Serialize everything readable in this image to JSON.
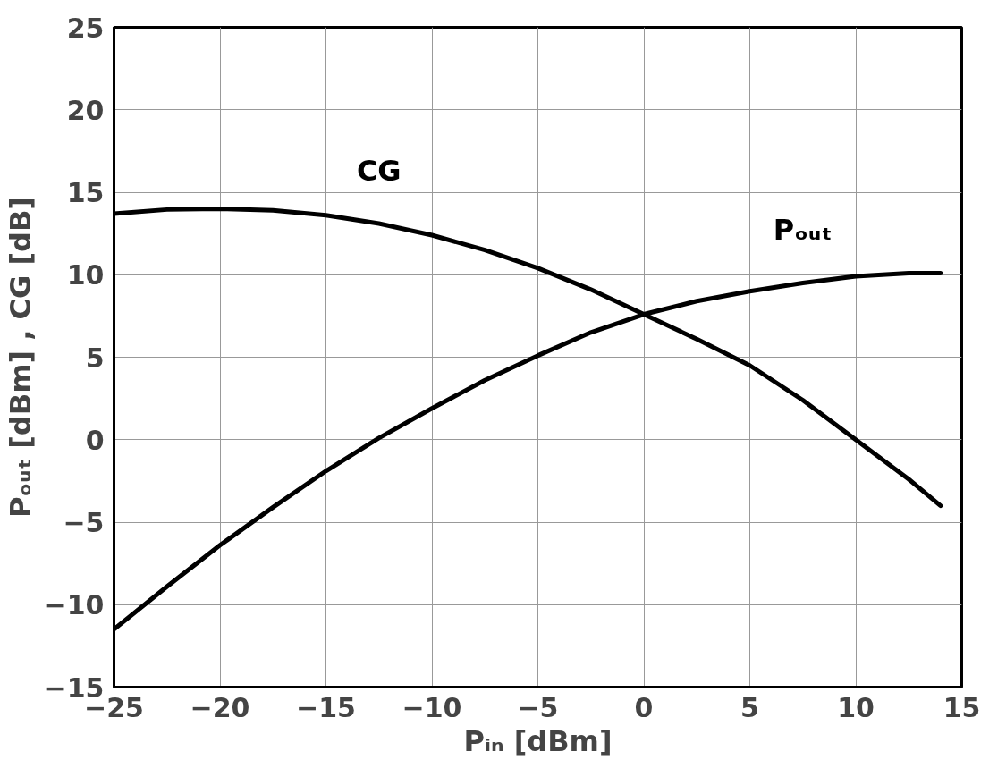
{
  "chart_data": {
    "type": "line",
    "xlabel": "Pᵢₙ [dBm]",
    "ylabel": "Pₒᵤₜ [dBm] , CG [dB]",
    "x": [
      -25,
      -22.5,
      -20,
      -17.5,
      -15,
      -12.5,
      -10,
      -7.5,
      -5,
      -2.5,
      0,
      2.5,
      5,
      7.5,
      10,
      12.5,
      14
    ],
    "series": [
      {
        "name": "CG",
        "color": "#000000",
        "values": [
          13.7,
          13.95,
          14.0,
          13.9,
          13.6,
          13.1,
          12.4,
          11.5,
          10.4,
          9.1,
          7.6,
          6.1,
          4.5,
          2.4,
          0.0,
          -2.4,
          -4.0
        ]
      },
      {
        "name": "Pₒᵤₜ",
        "color": "#000000",
        "values": [
          -11.5,
          -8.9,
          -6.4,
          -4.1,
          -1.9,
          0.1,
          1.9,
          3.6,
          5.1,
          6.5,
          7.6,
          8.4,
          9.0,
          9.5,
          9.9,
          10.1,
          10.1
        ]
      }
    ],
    "xlim": [
      -25,
      15
    ],
    "ylim": [
      -15,
      25
    ],
    "xticks": [
      -25,
      -20,
      -15,
      -10,
      -5,
      0,
      5,
      10,
      15
    ],
    "yticks": [
      -15,
      -10,
      -5,
      0,
      5,
      10,
      15,
      20,
      25
    ],
    "grid": true,
    "marker": "none",
    "line_style": "solid"
  }
}
